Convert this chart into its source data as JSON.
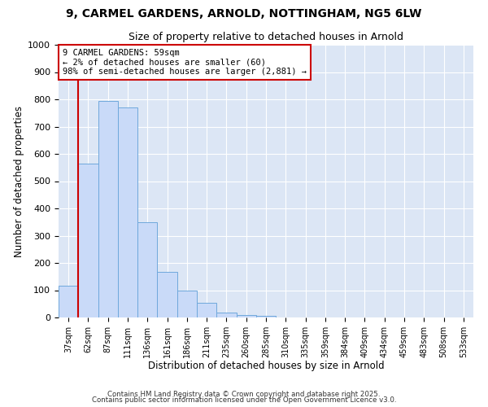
{
  "title": "9, CARMEL GARDENS, ARNOLD, NOTTINGHAM, NG5 6LW",
  "subtitle": "Size of property relative to detached houses in Arnold",
  "xlabel": "Distribution of detached houses by size in Arnold",
  "ylabel": "Number of detached properties",
  "bar_labels": [
    "37sqm",
    "62sqm",
    "87sqm",
    "111sqm",
    "136sqm",
    "161sqm",
    "186sqm",
    "211sqm",
    "235sqm",
    "260sqm",
    "285sqm",
    "310sqm",
    "335sqm",
    "359sqm",
    "384sqm",
    "409sqm",
    "434sqm",
    "459sqm",
    "483sqm",
    "508sqm",
    "533sqm"
  ],
  "bar_values": [
    115,
    565,
    795,
    770,
    350,
    168,
    98,
    53,
    18,
    8,
    5,
    0,
    0,
    0,
    0,
    0,
    0,
    0,
    0,
    0,
    0
  ],
  "bar_color": "#c9daf8",
  "bar_edgecolor": "#6fa8dc",
  "vline_color": "#cc0000",
  "annotation_title": "9 CARMEL GARDENS: 59sqm",
  "annotation_line1": "← 2% of detached houses are smaller (60)",
  "annotation_line2": "98% of semi-detached houses are larger (2,881) →",
  "annotation_box_color": "#cc0000",
  "ylim": [
    0,
    1000
  ],
  "yticks": [
    0,
    100,
    200,
    300,
    400,
    500,
    600,
    700,
    800,
    900,
    1000
  ],
  "footer1": "Contains HM Land Registry data © Crown copyright and database right 2025.",
  "footer2": "Contains public sector information licensed under the Open Government Licence v3.0.",
  "bg_color": "#ffffff",
  "plot_bg_color": "#dce6f5"
}
